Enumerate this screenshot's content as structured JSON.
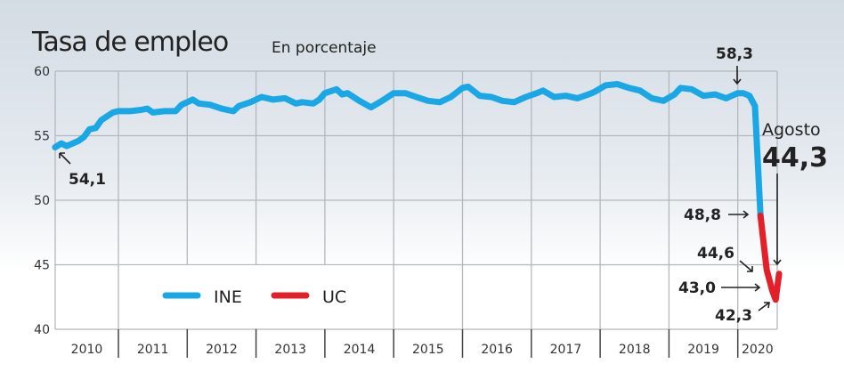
{
  "chart_data": {
    "type": "line",
    "title": "Tasa de empleo",
    "subtitle": "En porcentaje",
    "ylim": [
      40,
      60
    ],
    "yticks": [
      "40",
      "45",
      "50",
      "55",
      "60"
    ],
    "xticks": [
      "2010",
      "2011",
      "2012",
      "2013",
      "2014",
      "2015",
      "2016",
      "2017",
      "2018",
      "2019",
      "2020"
    ],
    "grid": true,
    "legend": {
      "placement": "bottom-left",
      "entries": [
        "INE",
        "UC"
      ]
    },
    "series": [
      {
        "name": "INE",
        "color": "#1aa7e6",
        "points": [
          [
            2010.08,
            54.1
          ],
          [
            2010.17,
            54.4
          ],
          [
            2010.25,
            54.2
          ],
          [
            2010.42,
            54.6
          ],
          [
            2010.5,
            54.9
          ],
          [
            2010.58,
            55.5
          ],
          [
            2010.67,
            55.6
          ],
          [
            2010.75,
            56.2
          ],
          [
            2010.92,
            56.8
          ],
          [
            2011.0,
            56.9
          ],
          [
            2011.17,
            56.9
          ],
          [
            2011.33,
            57.0
          ],
          [
            2011.42,
            57.1
          ],
          [
            2011.5,
            56.8
          ],
          [
            2011.67,
            56.9
          ],
          [
            2011.83,
            56.9
          ],
          [
            2011.92,
            57.4
          ],
          [
            2012.08,
            57.8
          ],
          [
            2012.17,
            57.5
          ],
          [
            2012.33,
            57.4
          ],
          [
            2012.5,
            57.1
          ],
          [
            2012.67,
            56.9
          ],
          [
            2012.75,
            57.3
          ],
          [
            2012.92,
            57.6
          ],
          [
            2013.08,
            58.0
          ],
          [
            2013.25,
            57.8
          ],
          [
            2013.42,
            57.9
          ],
          [
            2013.58,
            57.5
          ],
          [
            2013.67,
            57.6
          ],
          [
            2013.83,
            57.5
          ],
          [
            2013.92,
            57.8
          ],
          [
            2014.0,
            58.3
          ],
          [
            2014.17,
            58.6
          ],
          [
            2014.25,
            58.2
          ],
          [
            2014.33,
            58.3
          ],
          [
            2014.5,
            57.7
          ],
          [
            2014.67,
            57.2
          ],
          [
            2014.83,
            57.7
          ],
          [
            2015.0,
            58.3
          ],
          [
            2015.17,
            58.3
          ],
          [
            2015.33,
            58.0
          ],
          [
            2015.5,
            57.7
          ],
          [
            2015.67,
            57.6
          ],
          [
            2015.83,
            58.0
          ],
          [
            2016.0,
            58.7
          ],
          [
            2016.08,
            58.8
          ],
          [
            2016.25,
            58.1
          ],
          [
            2016.42,
            58.0
          ],
          [
            2016.58,
            57.7
          ],
          [
            2016.75,
            57.6
          ],
          [
            2016.92,
            58.0
          ],
          [
            2017.08,
            58.3
          ],
          [
            2017.17,
            58.5
          ],
          [
            2017.33,
            58.0
          ],
          [
            2017.5,
            58.1
          ],
          [
            2017.67,
            57.9
          ],
          [
            2017.83,
            58.2
          ],
          [
            2017.92,
            58.4
          ],
          [
            2018.08,
            58.9
          ],
          [
            2018.25,
            59.0
          ],
          [
            2018.42,
            58.7
          ],
          [
            2018.58,
            58.5
          ],
          [
            2018.75,
            57.9
          ],
          [
            2018.92,
            57.7
          ],
          [
            2019.08,
            58.2
          ],
          [
            2019.17,
            58.7
          ],
          [
            2019.33,
            58.6
          ],
          [
            2019.5,
            58.1
          ],
          [
            2019.67,
            58.2
          ],
          [
            2019.83,
            57.9
          ],
          [
            2020.0,
            58.3
          ],
          [
            2020.08,
            58.3
          ],
          [
            2020.17,
            58.1
          ],
          [
            2020.25,
            57.3
          ],
          [
            2020.33,
            48.8
          ]
        ]
      },
      {
        "name": "UC",
        "color": "#e3202a",
        "points": [
          [
            2020.33,
            48.8
          ],
          [
            2020.42,
            44.6
          ],
          [
            2020.5,
            43.0
          ],
          [
            2020.55,
            42.3
          ],
          [
            2020.6,
            44.3
          ]
        ]
      }
    ],
    "annotations": {
      "start": "54,1",
      "peak": "58,3",
      "ine_last": "48,8",
      "uc_1": "44,6",
      "uc_2": "43,0",
      "uc_min": "42,3",
      "latest_label": "Agosto",
      "latest_value": "44,3"
    }
  }
}
